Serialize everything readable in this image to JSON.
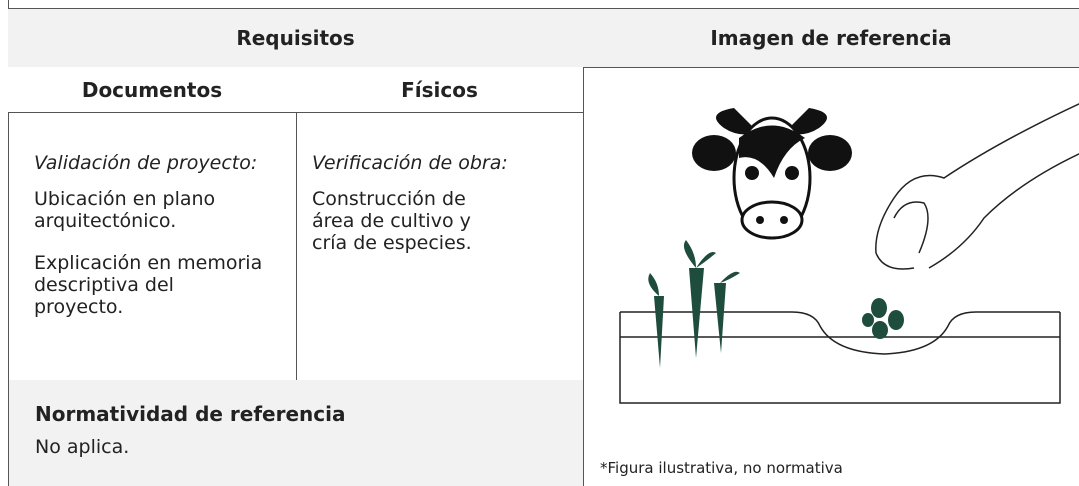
{
  "table": {
    "header": {
      "requirements": "Requisitos",
      "reference_image": "Imagen de referencia"
    },
    "subheader": {
      "documents": "Documentos",
      "physical": "Físicos"
    },
    "documents": {
      "heading": "Validación de proyecto:",
      "items": [
        "Ubicación en plano arquitectónico.",
        "Explicación en memoria descriptiva del proyecto."
      ]
    },
    "physical": {
      "heading": "Verificación de obra:",
      "items": [
        "Construcción de área de cultivo y cría de especies."
      ]
    },
    "regulations": {
      "title": "Normatividad de referencia",
      "text": "No aplica."
    },
    "figure_caption": "*Figura ilustrativa, no normativa"
  }
}
